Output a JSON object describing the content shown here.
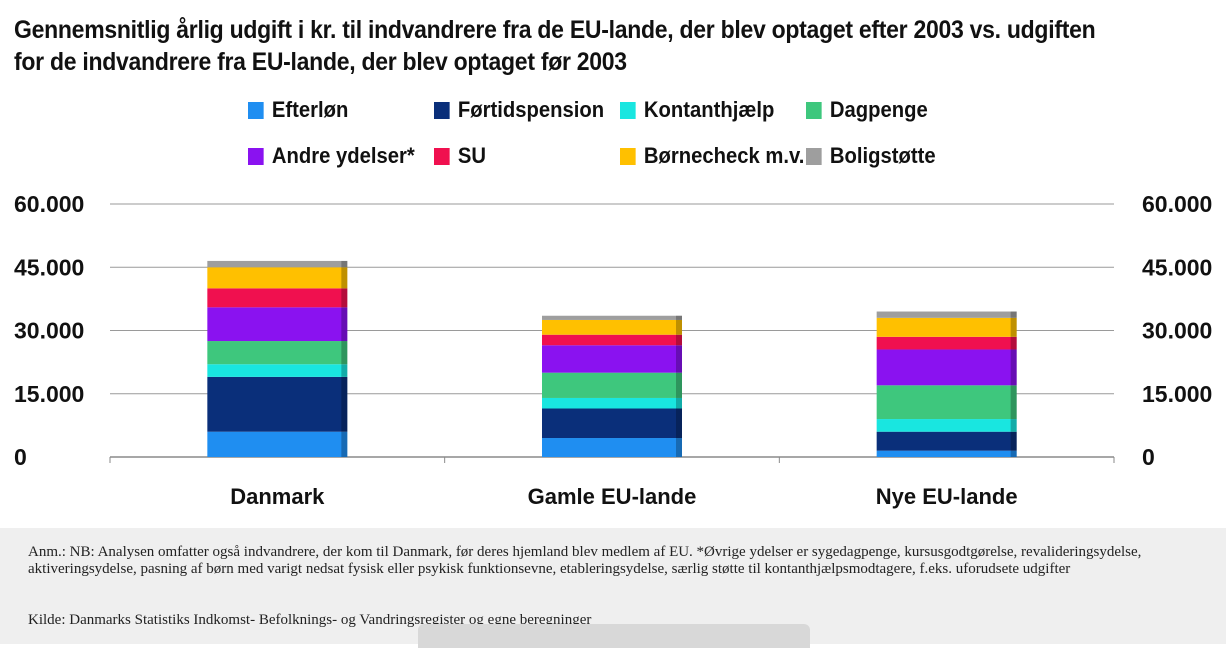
{
  "title": "Gennemsnitlig årlig udgift i kr. til indvandrere fra de EU-lande, der blev optaget efter 2003 vs. udgiften for de indvandrere fra EU-lande, der blev optaget før 2003",
  "note": "Anm.: NB: Analysen omfatter også indvandrere, der kom til Danmark, før deres hjemland blev medlem af EU. *Øvrige ydelser er sygedagpenge, kursusgodtgørelse, revalideringsydelse, aktiveringsydelse, pasning af børn med varigt nedsat fysisk eller psykisk funktionsevne, etableringsydelse, særlig støtte til kontanthjælpsmodtagere, f.eks. uforudsete udgifter",
  "source": "Kilde: Danmarks Statistiks Indkomst- Befolknings- og Vandringsregister og egne beregninger",
  "chart_data": {
    "type": "bar",
    "stacked": true,
    "categories": [
      "Danmark",
      "Gamle EU-lande",
      "Nye EU-lande"
    ],
    "series": [
      {
        "name": "Efterløn",
        "color": "#1f8ef1",
        "values": [
          6000,
          4500,
          1500
        ]
      },
      {
        "name": "Førtidspension",
        "color": "#0a2f7a",
        "values": [
          13000,
          7000,
          4500
        ]
      },
      {
        "name": "Kontanthjælp",
        "color": "#19e6e0",
        "values": [
          3000,
          2500,
          3000
        ]
      },
      {
        "name": "Dagpenge",
        "color": "#3ec77d",
        "values": [
          5500,
          6000,
          8000
        ]
      },
      {
        "name": "Andre ydelser*",
        "color": "#8a12f0",
        "values": [
          8000,
          6500,
          8500
        ]
      },
      {
        "name": "SU",
        "color": "#f0104f",
        "values": [
          4500,
          2500,
          3000
        ]
      },
      {
        "name": "Børnecheck m.v.",
        "color": "#ffc000",
        "values": [
          5000,
          3500,
          4500
        ]
      },
      {
        "name": "Boligstøtte",
        "color": "#9e9e9e",
        "values": [
          1500,
          1000,
          1500
        ]
      }
    ],
    "y_ticks": [
      "60.000",
      "45.000",
      "30.000",
      "15.000",
      "0"
    ],
    "ylim": [
      0,
      60000
    ],
    "legend_position": "top",
    "grid": true
  }
}
